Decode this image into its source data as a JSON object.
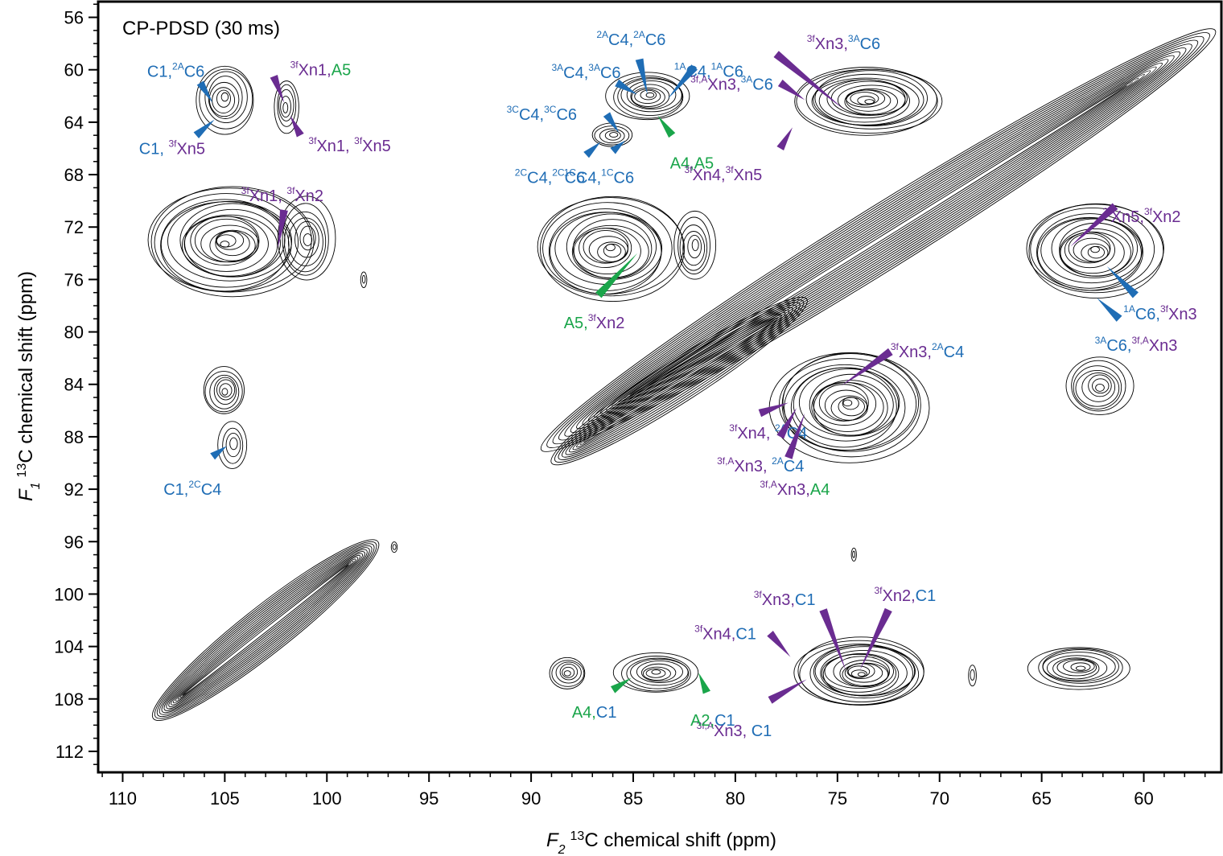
{
  "chart_data": {
    "type": "heatmap",
    "title": "CP-PDSD (30 ms)",
    "xlabel": {
      "main": "F",
      "sub": "2",
      "sup": "13",
      "rest": "C chemical shift (ppm)"
    },
    "ylabel": {
      "main": "F",
      "sub": "1",
      "sup": "13",
      "rest": "C chemical shift (ppm)"
    },
    "x_range": [
      111.2,
      56.2
    ],
    "y_range": [
      54.8,
      113.6
    ],
    "x_ticks": [
      110,
      105,
      100,
      95,
      90,
      85,
      80,
      75,
      70,
      65,
      60
    ],
    "y_ticks": [
      56,
      60,
      64,
      68,
      72,
      76,
      80,
      84,
      88,
      92,
      96,
      100,
      104,
      108,
      112
    ],
    "colors": {
      "blue": "#1f6db5",
      "purple": "#6a2c91",
      "green": "#1aa54a",
      "contour": "#000000"
    },
    "peaks": [
      {
        "x": 105.0,
        "y": 62.2,
        "rx": 1.4,
        "ry": 2.6,
        "levels": 8
      },
      {
        "x": 102.0,
        "y": 62.8,
        "rx": 0.6,
        "ry": 2.0,
        "levels": 5
      },
      {
        "x": 104.8,
        "y": 73.2,
        "rx": 4.0,
        "ry": 4.2,
        "levels": 18
      },
      {
        "x": 101.0,
        "y": 73.0,
        "rx": 1.4,
        "ry": 3.2,
        "levels": 7
      },
      {
        "x": 105.0,
        "y": 84.5,
        "rx": 1.0,
        "ry": 1.8,
        "levels": 7
      },
      {
        "x": 104.6,
        "y": 88.6,
        "rx": 0.7,
        "ry": 1.8,
        "levels": 4
      },
      {
        "x": 96.7,
        "y": 96.4,
        "rx": 0.15,
        "ry": 0.4,
        "levels": 2
      },
      {
        "x": 98.2,
        "y": 76.0,
        "rx": 0.15,
        "ry": 0.6,
        "levels": 2
      },
      {
        "x": 86.2,
        "y": 73.7,
        "rx": 3.6,
        "ry": 4.0,
        "levels": 16
      },
      {
        "x": 82.0,
        "y": 73.5,
        "rx": 1.0,
        "ry": 2.6,
        "levels": 6
      },
      {
        "x": 86.0,
        "y": 65.0,
        "rx": 1.0,
        "ry": 0.9,
        "levels": 5
      },
      {
        "x": 84.2,
        "y": 62.0,
        "rx": 2.0,
        "ry": 1.8,
        "levels": 10
      },
      {
        "x": 73.5,
        "y": 62.3,
        "rx": 3.6,
        "ry": 2.6,
        "levels": 16
      },
      {
        "x": 74.5,
        "y": 85.6,
        "rx": 3.8,
        "ry": 4.2,
        "levels": 18
      },
      {
        "x": 62.5,
        "y": 73.8,
        "rx": 3.4,
        "ry": 3.6,
        "levels": 16
      },
      {
        "x": 62.2,
        "y": 84.2,
        "rx": 1.6,
        "ry": 2.2,
        "levels": 8
      },
      {
        "x": 73.8,
        "y": 106.0,
        "rx": 3.2,
        "ry": 2.6,
        "levels": 18
      },
      {
        "x": 83.8,
        "y": 106.0,
        "rx": 2.0,
        "ry": 1.5,
        "levels": 9
      },
      {
        "x": 88.2,
        "y": 106.0,
        "rx": 0.9,
        "ry": 1.2,
        "levels": 6
      },
      {
        "x": 63.2,
        "y": 105.6,
        "rx": 2.4,
        "ry": 1.6,
        "levels": 10
      },
      {
        "x": 68.4,
        "y": 106.2,
        "rx": 0.2,
        "ry": 0.8,
        "levels": 2
      },
      {
        "x": 74.2,
        "y": 97.0,
        "rx": 0.12,
        "ry": 0.5,
        "levels": 2
      }
    ],
    "ridges": [
      {
        "x1": 108.5,
        "y1": 109.5,
        "x2": 97.5,
        "y2": 96.0,
        "w": 1.8,
        "levels": 14
      },
      {
        "x1": 89.5,
        "y1": 89.0,
        "x2": 56.5,
        "y2": 57.0,
        "w": 2.4,
        "levels": 16
      },
      {
        "x1": 89.0,
        "y1": 90.0,
        "x2": 76.5,
        "y2": 77.5,
        "w": 1.6,
        "levels": 10
      }
    ],
    "annotations": [
      {
        "color": "blue",
        "line": [
          [
            106.2,
            61.0
          ],
          [
            105.6,
            62.5
          ]
        ],
        "label": [
          {
            "t": "C1,"
          },
          {
            "t": "2A",
            "sup": true
          },
          {
            "t": "C6"
          }
        ],
        "tx": 108.8,
        "ty": 60.1
      },
      {
        "color": "blue",
        "line": [
          [
            106.4,
            65.0
          ],
          [
            105.5,
            63.8
          ]
        ],
        "label": [
          {
            "t": "C1, "
          },
          {
            "t": "3f",
            "sup": true,
            "c": "purple"
          },
          {
            "t": "Xn5",
            "c": "purple"
          }
        ],
        "tx": 109.2,
        "ty": 66.0
      },
      {
        "color": "purple",
        "line": [
          [
            102.6,
            60.5
          ],
          [
            102.1,
            62.5
          ]
        ],
        "label": [
          {
            "t": "3f",
            "sup": true
          },
          {
            "t": "Xn1,"
          },
          {
            "t": "A5",
            "c": "green"
          }
        ],
        "tx": 101.8,
        "ty": 60.0
      },
      {
        "color": "purple",
        "line": [
          [
            101.3,
            65.0
          ],
          [
            101.8,
            63.5
          ]
        ],
        "label": [
          {
            "t": "3f",
            "sup": true
          },
          {
            "t": "Xn1, "
          },
          {
            "t": "3f",
            "sup": true
          },
          {
            "t": "Xn5"
          }
        ],
        "tx": 100.9,
        "ty": 65.8
      },
      {
        "color": "purple",
        "line": [
          [
            102.1,
            70.7
          ],
          [
            102.4,
            73.6
          ]
        ],
        "label": [
          {
            "t": "3f",
            "sup": true
          },
          {
            "t": "Xn1, "
          },
          {
            "t": "3f",
            "sup": true
          },
          {
            "t": "Xn2"
          }
        ],
        "tx": 104.2,
        "ty": 69.6
      },
      {
        "color": "blue",
        "line": [
          [
            105.6,
            89.5
          ],
          [
            104.9,
            88.7
          ]
        ],
        "label": [
          {
            "t": "C1,"
          },
          {
            "t": "2C",
            "sup": true
          },
          {
            "t": "C4"
          }
        ],
        "tx": 108.0,
        "ty": 92.0
      },
      {
        "color": "blue",
        "line": [
          [
            86.3,
            63.4
          ],
          [
            85.7,
            64.8
          ]
        ],
        "label": [
          {
            "t": "3C",
            "sup": true
          },
          {
            "t": "C4,"
          },
          {
            "t": "3C",
            "sup": true
          },
          {
            "t": "C6"
          }
        ],
        "tx": 91.2,
        "ty": 63.4
      },
      {
        "color": "blue",
        "line": [
          [
            86.0,
            66.2
          ],
          [
            85.4,
            65.4
          ]
        ],
        "label": [
          {
            "t": "2C",
            "sup": true
          },
          {
            "t": "C4,"
          },
          {
            "t": "2C",
            "sup": true
          },
          {
            "t": "C6"
          }
        ],
        "tx": 90.8,
        "ty": 68.2
      },
      {
        "color": "blue",
        "line": [
          [
            87.3,
            66.5
          ],
          [
            86.6,
            65.5
          ]
        ],
        "label": [
          {
            "t": "1C",
            "sup": true
          },
          {
            "t": "C4,"
          },
          {
            "t": "1C",
            "sup": true
          },
          {
            "t": "C6"
          }
        ],
        "tx": 88.4,
        "ty": 68.2
      },
      {
        "color": "blue",
        "line": [
          [
            85.8,
            61.0
          ],
          [
            84.8,
            61.9
          ]
        ],
        "label": [
          {
            "t": "3A",
            "sup": true
          },
          {
            "t": "C4,"
          },
          {
            "t": "3A",
            "sup": true
          },
          {
            "t": "C6"
          }
        ],
        "tx": 89.0,
        "ty": 60.2
      },
      {
        "color": "blue",
        "line": [
          [
            84.7,
            59.2
          ],
          [
            84.3,
            61.9
          ]
        ],
        "label": [
          {
            "t": "2A",
            "sup": true
          },
          {
            "t": "C4,"
          },
          {
            "t": "2A",
            "sup": true
          },
          {
            "t": "C6"
          }
        ],
        "tx": 86.8,
        "ty": 57.7
      },
      {
        "color": "blue",
        "line": [
          [
            82.0,
            59.8
          ],
          [
            83.3,
            62.2
          ]
        ],
        "label": [
          {
            "t": "1A",
            "sup": true
          },
          {
            "t": "C4,"
          },
          {
            "t": "1A",
            "sup": true
          },
          {
            "t": "C6"
          }
        ],
        "tx": 83.0,
        "ty": 60.1
      },
      {
        "color": "green",
        "line": [
          [
            83.1,
            65.0
          ],
          [
            83.8,
            63.5
          ]
        ],
        "label": [
          {
            "t": "A4,A5"
          }
        ],
        "tx": 83.2,
        "ty": 67.1
      },
      {
        "color": "purple",
        "line": [
          [
            78.0,
            58.8
          ],
          [
            74.7,
            63.0
          ]
        ],
        "label": [
          {
            "t": "3f",
            "sup": true
          },
          {
            "t": "Xn3,"
          },
          {
            "t": "3A",
            "sup": true,
            "c": "blue"
          },
          {
            "t": "C6",
            "c": "blue"
          }
        ],
        "tx": 76.5,
        "ty": 58.0
      },
      {
        "color": "purple",
        "line": [
          [
            77.8,
            61.0
          ],
          [
            76.6,
            62.3
          ]
        ],
        "label": [
          {
            "t": "3f,A",
            "sup": true
          },
          {
            "t": "Xn3,"
          },
          {
            "t": "3A",
            "sup": true,
            "c": "blue"
          },
          {
            "t": "C6",
            "c": "blue"
          }
        ],
        "tx": 82.2,
        "ty": 61.1
      },
      {
        "color": "purple",
        "line": [
          [
            77.8,
            66.0
          ],
          [
            77.2,
            64.4
          ]
        ],
        "label": [
          {
            "t": "3f",
            "sup": true
          },
          {
            "t": "Xn4,"
          },
          {
            "t": "3f",
            "sup": true
          },
          {
            "t": "Xn5"
          }
        ],
        "tx": 82.5,
        "ty": 68.0
      },
      {
        "color": "green",
        "line": [
          [
            86.7,
            77.2
          ],
          [
            84.8,
            74.0
          ]
        ],
        "label": [
          {
            "t": "A5,"
          },
          {
            "t": "3f",
            "sup": true,
            "c": "purple"
          },
          {
            "t": "Xn2",
            "c": "purple"
          }
        ],
        "tx": 88.4,
        "ty": 79.3
      },
      {
        "color": "purple",
        "line": [
          [
            72.4,
            81.5
          ],
          [
            74.8,
            84.1
          ]
        ],
        "label": [
          {
            "t": "3f",
            "sup": true
          },
          {
            "t": "Xn3,"
          },
          {
            "t": "2A",
            "sup": true,
            "c": "blue"
          },
          {
            "t": "C4",
            "c": "blue"
          }
        ],
        "tx": 72.4,
        "ty": 81.5
      },
      {
        "color": "purple",
        "line": [
          [
            78.8,
            86.2
          ],
          [
            77.4,
            85.4
          ]
        ],
        "label": [
          {
            "t": "3f",
            "sup": true
          },
          {
            "t": "Xn4, "
          },
          {
            "t": "2A",
            "sup": true,
            "c": "blue"
          },
          {
            "t": "C4",
            "c": "blue"
          }
        ],
        "tx": 80.3,
        "ty": 87.7
      },
      {
        "color": "purple",
        "line": [
          [
            77.8,
            88.0
          ],
          [
            77.0,
            85.8
          ]
        ],
        "label": [
          {
            "t": "3f,A",
            "sup": true
          },
          {
            "t": "Xn3, "
          },
          {
            "t": "2A",
            "sup": true,
            "c": "blue"
          },
          {
            "t": "C4",
            "c": "blue"
          }
        ],
        "tx": 80.9,
        "ty": 90.2
      },
      {
        "color": "purple",
        "line": [
          [
            77.4,
            89.6
          ],
          [
            76.6,
            86.2
          ]
        ],
        "label": [
          {
            "t": "3f,A",
            "sup": true
          },
          {
            "t": "Xn3,"
          },
          {
            "t": "A4",
            "c": "green"
          }
        ],
        "tx": 78.8,
        "ty": 92.0
      },
      {
        "color": "purple",
        "line": [
          [
            61.4,
            70.4
          ],
          [
            63.6,
            73.5
          ]
        ],
        "label": [
          {
            "t": "3f",
            "sup": true
          },
          {
            "t": "Xn5,"
          },
          {
            "t": "3f",
            "sup": true
          },
          {
            "t": "Xn2"
          }
        ],
        "tx": 62.0,
        "ty": 71.2
      },
      {
        "color": "blue",
        "line": [
          [
            60.4,
            77.2
          ],
          [
            61.8,
            75.0
          ]
        ],
        "label": [
          {
            "t": "1A",
            "sup": true
          },
          {
            "t": "C6,"
          },
          {
            "t": "3f",
            "sup": true,
            "c": "purple"
          },
          {
            "t": "Xn3",
            "c": "purple"
          }
        ],
        "tx": 61.0,
        "ty": 78.6
      },
      {
        "color": "blue",
        "line": [
          [
            61.2,
            79.0
          ],
          [
            62.3,
            77.4
          ]
        ],
        "label": [
          {
            "t": "3A",
            "sup": true
          },
          {
            "t": "C6,"
          },
          {
            "t": "3f,A",
            "sup": true,
            "c": "purple"
          },
          {
            "t": "Xn3",
            "c": "purple"
          }
        ],
        "tx": 62.4,
        "ty": 81.0
      },
      {
        "color": "purple",
        "line": [
          [
            75.7,
            101.2
          ],
          [
            74.6,
            105.8
          ]
        ],
        "label": [
          {
            "t": "3f",
            "sup": true
          },
          {
            "t": "Xn3,"
          },
          {
            "t": "C1",
            "c": "blue"
          }
        ],
        "tx": 79.1,
        "ty": 100.4
      },
      {
        "color": "purple",
        "line": [
          [
            72.5,
            101.2
          ],
          [
            73.9,
            105.8
          ]
        ],
        "label": [
          {
            "t": "3f",
            "sup": true
          },
          {
            "t": "Xn2,"
          },
          {
            "t": "C1",
            "c": "blue"
          }
        ],
        "tx": 73.2,
        "ty": 100.1
      },
      {
        "color": "purple",
        "line": [
          [
            78.3,
            103.0
          ],
          [
            77.3,
            104.8
          ]
        ],
        "label": [
          {
            "t": "3f",
            "sup": true
          },
          {
            "t": "Xn4,"
          },
          {
            "t": "C1",
            "c": "blue"
          }
        ],
        "tx": 82.0,
        "ty": 103.0
      },
      {
        "color": "purple",
        "line": [
          [
            78.3,
            108.1
          ],
          [
            76.5,
            106.5
          ]
        ],
        "label": [
          {
            "t": "3f,A",
            "sup": true
          },
          {
            "t": "Xn3, "
          },
          {
            "t": "C1",
            "c": "blue"
          }
        ],
        "tx": 81.9,
        "ty": 110.4
      },
      {
        "color": "green",
        "line": [
          [
            86.0,
            107.3
          ],
          [
            85.1,
            106.4
          ]
        ],
        "label": [
          {
            "t": "A4,"
          },
          {
            "t": "C1",
            "c": "blue"
          }
        ],
        "tx": 88.0,
        "ty": 109.0
      },
      {
        "color": "green",
        "line": [
          [
            81.4,
            107.5
          ],
          [
            81.8,
            106.0
          ]
        ],
        "label": [
          {
            "t": "A2,"
          },
          {
            "t": "C1",
            "c": "blue"
          }
        ],
        "tx": 82.2,
        "ty": 109.6
      }
    ]
  }
}
